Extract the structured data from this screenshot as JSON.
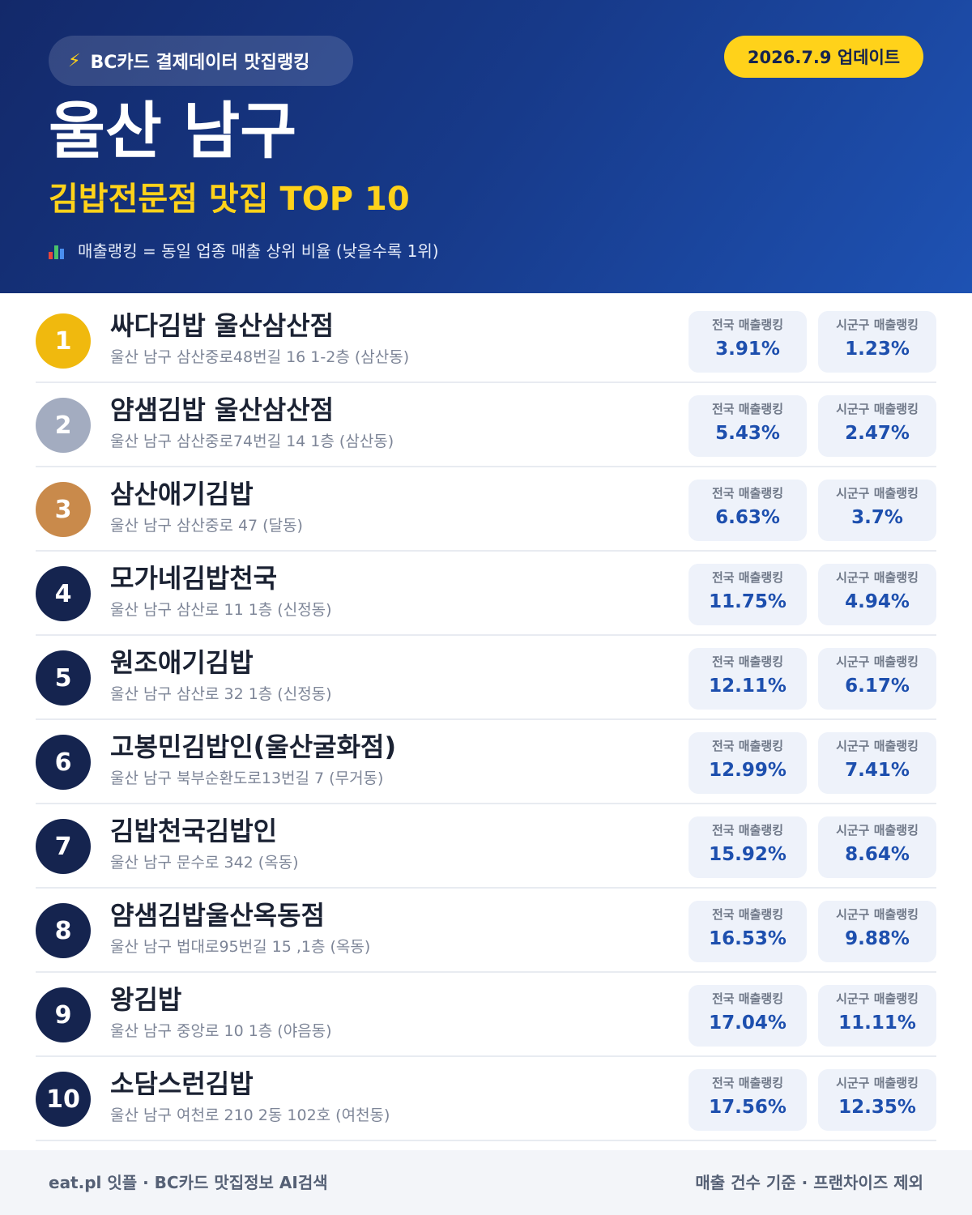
{
  "header": {
    "source_badge": "BC카드 결제데이터 맛집랭킹",
    "source_icon": "lightning-icon",
    "update_badge": "2026.7.9 업데이트",
    "region": "울산 남구",
    "category_title": "김밥전문점 맛집 TOP 10",
    "note_icon": "bar-chart-icon",
    "note": "매출랭킹 = 동일 업종 매출 상위 비율 (낮을수록 1위)"
  },
  "labels": {
    "national": "전국 매출랭킹",
    "district": "시군구 매출랭킹"
  },
  "restaurants": [
    {
      "rank": "1",
      "name": "싸다김밥 울산삼산점",
      "address": "울산 남구 삼산중로48번길 16 1-2층 (삼산동)",
      "national": "3.91%",
      "district": "1.23%"
    },
    {
      "rank": "2",
      "name": "얌샘김밥 울산삼산점",
      "address": "울산 남구 삼산중로74번길 14 1층 (삼산동)",
      "national": "5.43%",
      "district": "2.47%"
    },
    {
      "rank": "3",
      "name": "삼산애기김밥",
      "address": "울산 남구 삼산중로 47 (달동)",
      "national": "6.63%",
      "district": "3.7%"
    },
    {
      "rank": "4",
      "name": "모가네김밥천국",
      "address": "울산 남구 삼산로 11 1층 (신정동)",
      "national": "11.75%",
      "district": "4.94%"
    },
    {
      "rank": "5",
      "name": "원조애기김밥",
      "address": "울산 남구 삼산로 32 1층 (신정동)",
      "national": "12.11%",
      "district": "6.17%"
    },
    {
      "rank": "6",
      "name": "고봉민김밥인(울산굴화점)",
      "address": "울산 남구 북부순환도로13번길 7 (무거동)",
      "national": "12.99%",
      "district": "7.41%"
    },
    {
      "rank": "7",
      "name": "김밥천국김밥인",
      "address": "울산 남구 문수로 342 (옥동)",
      "national": "15.92%",
      "district": "8.64%"
    },
    {
      "rank": "8",
      "name": "얌샘김밥울산옥동점",
      "address": "울산 남구 법대로95번길 15 ,1층 (옥동)",
      "national": "16.53%",
      "district": "9.88%"
    },
    {
      "rank": "9",
      "name": "왕김밥",
      "address": "울산 남구 중앙로 10 1층 (야음동)",
      "national": "17.04%",
      "district": "11.11%"
    },
    {
      "rank": "10",
      "name": "소담스런김밥",
      "address": "울산 남구 여천로 210 2동 102호 (여천동)",
      "national": "17.56%",
      "district": "12.35%"
    }
  ],
  "footer": {
    "left": "eat.pl 잇플 · BC카드 맛집정보 AI검색",
    "right": "매출 건수 기준 · 프랜차이즈 제외"
  },
  "colors": {
    "header_bg": "#173a8a",
    "accent_yellow": "#ffd21a",
    "rank_gold": "#f0b90e",
    "rank_silver": "#a3acc0",
    "rank_bronze": "#c98a4b",
    "rank_default": "#15244f",
    "value_blue": "#1d4fae"
  }
}
